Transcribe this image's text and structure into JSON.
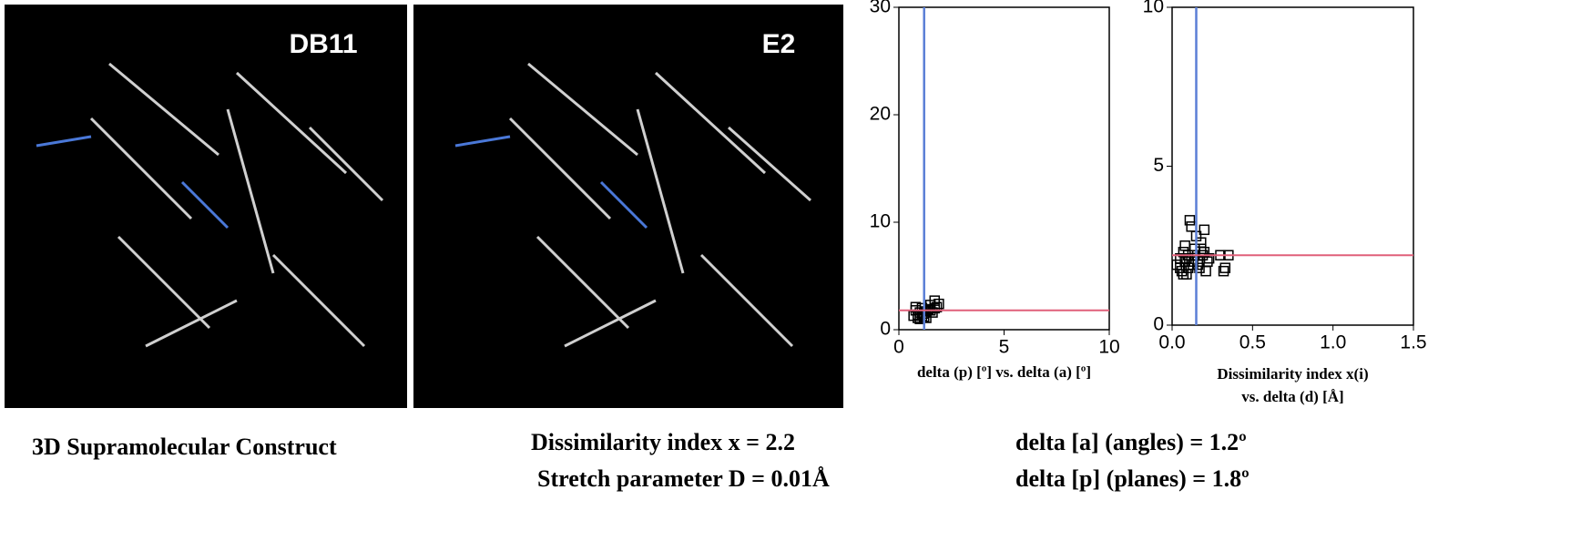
{
  "panels": [
    {
      "label": "DB11"
    },
    {
      "label": "E2"
    }
  ],
  "chart_data": [
    {
      "type": "scatter",
      "xlabel": "delta (p) [º] vs. delta (a) [º]",
      "xlim": [
        0,
        10
      ],
      "xticks": [
        0,
        5,
        10
      ],
      "ylim": [
        0,
        30
      ],
      "yticks": [
        0,
        10,
        20,
        30
      ],
      "vline": {
        "value": 1.2,
        "color": "#5b7fd6"
      },
      "hline": {
        "value": 1.8,
        "color": "#e0607a"
      },
      "series": [
        {
          "color": "#000000",
          "x": [
            0.7,
            0.8,
            0.9,
            1.0,
            1.1,
            1.2,
            1.3,
            0.8,
            1.0,
            1.2,
            1.4,
            1.5,
            1.6,
            1.7,
            1.8,
            1.9,
            0.9,
            1.1,
            1.3,
            1.5,
            1.7
          ],
          "values": [
            1.3,
            1.8,
            1.1,
            1.6,
            2.0,
            1.2,
            1.7,
            2.1,
            1.0,
            1.5,
            1.9,
            2.3,
            1.6,
            2.7,
            2.1,
            2.4,
            1.4,
            1.3,
            1.1,
            1.8,
            2.0
          ]
        }
      ]
    },
    {
      "type": "scatter",
      "xlabel": [
        "Dissimilarity index x(i)",
        "vs.  delta (d) [Å]"
      ],
      "xlim": [
        0,
        1.5
      ],
      "xticks": [
        {
          "value": 0,
          "label": "0.0"
        },
        {
          "value": 0.5,
          "label": "0.5"
        },
        {
          "value": 1,
          "label": "1.0"
        },
        {
          "value": 1.5,
          "label": "1.5"
        }
      ],
      "ylim": [
        0,
        10
      ],
      "yticks": [
        0,
        5,
        10
      ],
      "vline": {
        "value": 0.15,
        "color": "#5b7fd6"
      },
      "hline": {
        "value": 2.2,
        "color": "#e0607a"
      },
      "series": [
        {
          "color": "#000000",
          "x": [
            0.03,
            0.05,
            0.06,
            0.07,
            0.08,
            0.09,
            0.1,
            0.11,
            0.12,
            0.13,
            0.14,
            0.15,
            0.16,
            0.17,
            0.18,
            0.19,
            0.2,
            0.21,
            0.22,
            0.23,
            0.05,
            0.08,
            0.1,
            0.12,
            0.14,
            0.16,
            0.18,
            0.2,
            0.3,
            0.33,
            0.35,
            0.32,
            0.09,
            0.07
          ],
          "values": [
            1.9,
            2.1,
            1.7,
            2.3,
            2.0,
            1.6,
            2.2,
            3.3,
            3.1,
            1.9,
            2.4,
            2.8,
            2.0,
            1.8,
            2.6,
            2.2,
            3.0,
            1.7,
            2.0,
            2.1,
            1.8,
            2.5,
            1.8,
            2.0,
            2.2,
            1.9,
            2.4,
            2.3,
            2.2,
            1.8,
            2.2,
            1.7,
            2.1,
            1.6
          ]
        }
      ]
    }
  ],
  "captions": {
    "construct": "3D Supramolecular Construct",
    "dissimilarity": "Dissimilarity index x = 2.2",
    "stretch": "Stretch parameter D = 0.01Å",
    "angles": "delta [a] (angles) = 1.2º",
    "planes": "delta [p] (planes) =  1.8º"
  }
}
